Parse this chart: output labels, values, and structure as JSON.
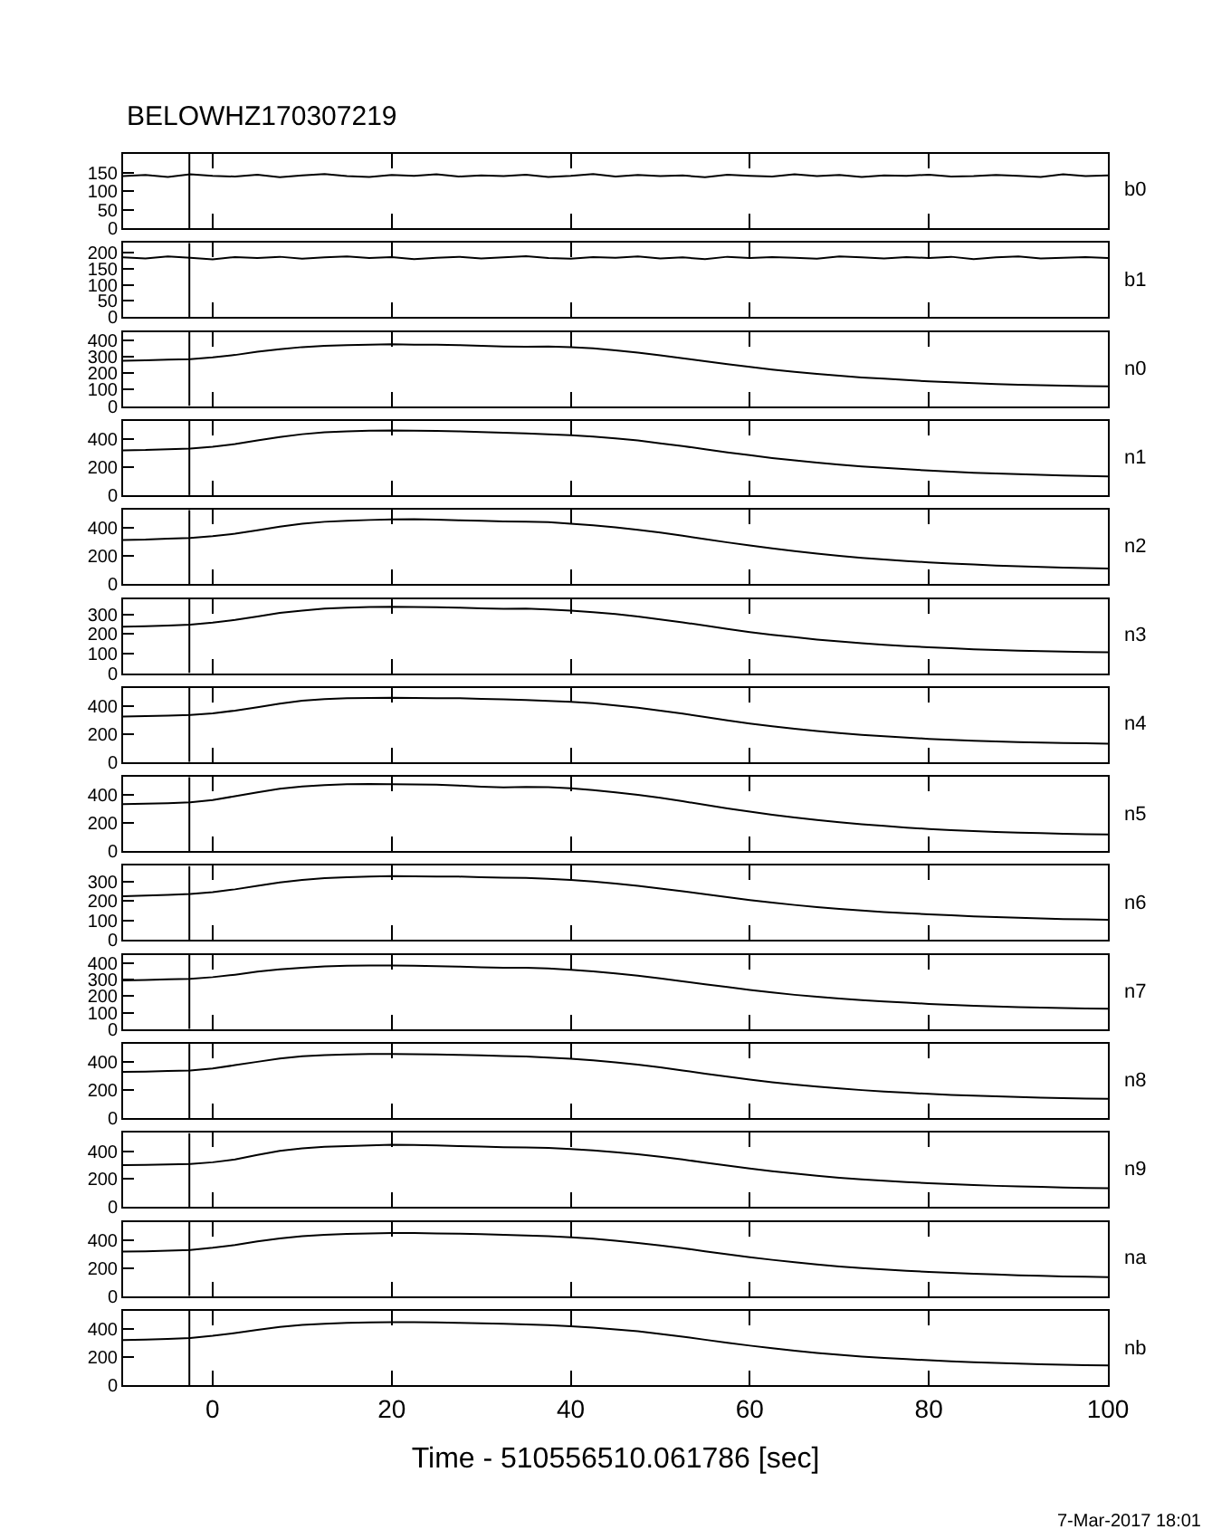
{
  "chart_data": [
    {
      "type": "line",
      "title": "BELOWHZ170307219",
      "x": [
        -10,
        -7.5,
        -5,
        -2.5,
        0,
        2.5,
        5,
        7.5,
        10,
        12.5,
        15,
        17.5,
        20,
        22.5,
        25,
        27.5,
        30,
        32.5,
        35,
        37.5,
        40,
        42.5,
        45,
        47.5,
        50,
        52.5,
        55,
        57.5,
        60,
        62.5,
        65,
        67.5,
        70,
        72.5,
        75,
        77.5,
        80,
        82.5,
        85,
        87.5,
        90,
        92.5,
        95,
        97.5,
        100
      ],
      "series": [
        {
          "name": "b0",
          "color": "#000000",
          "values": [
            140,
            143,
            138,
            145,
            141,
            139,
            144,
            137,
            142,
            146,
            140,
            138,
            143,
            141,
            145,
            139,
            142,
            140,
            144,
            138,
            141,
            146,
            139,
            143,
            140,
            142,
            137,
            144,
            141,
            139,
            145,
            140,
            143,
            138,
            142,
            141,
            144,
            139,
            140,
            143,
            141,
            138,
            145,
            140,
            142
          ]
        }
      ],
      "xlim": [
        -10,
        100
      ],
      "xticks": [
        0,
        20,
        40,
        60,
        80,
        100
      ],
      "ylim": [
        0,
        200
      ],
      "yticks": [
        0,
        50,
        100,
        150
      ],
      "ref_lines": [
        {
          "axis": "x",
          "value": -2.6,
          "color": "#000000"
        }
      ],
      "tick_labels": "y",
      "grid": false
    },
    {
      "type": "line",
      "x": [
        -10,
        -7.5,
        -5,
        -2.5,
        0,
        2.5,
        5,
        7.5,
        10,
        12.5,
        15,
        17.5,
        20,
        22.5,
        25,
        27.5,
        30,
        32.5,
        35,
        37.5,
        40,
        42.5,
        45,
        47.5,
        50,
        52.5,
        55,
        57.5,
        60,
        62.5,
        65,
        67.5,
        70,
        72.5,
        75,
        77.5,
        80,
        82.5,
        85,
        87.5,
        90,
        92.5,
        95,
        97.5,
        100
      ],
      "series": [
        {
          "name": "b1",
          "color": "#000000",
          "values": [
            185,
            182,
            188,
            184,
            179,
            186,
            183,
            187,
            181,
            185,
            188,
            183,
            186,
            180,
            184,
            187,
            182,
            185,
            189,
            183,
            181,
            186,
            184,
            188,
            182,
            185,
            180,
            187,
            183,
            186,
            184,
            181,
            188,
            185,
            182,
            186,
            183,
            187,
            180,
            185,
            188,
            182,
            184,
            186,
            183
          ]
        }
      ],
      "xlim": [
        -10,
        100
      ],
      "xticks": [
        0,
        20,
        40,
        60,
        80,
        100
      ],
      "ylim": [
        0,
        230
      ],
      "yticks": [
        0,
        50,
        100,
        150,
        200
      ],
      "ref_lines": [
        {
          "axis": "x",
          "value": -2.6,
          "color": "#000000"
        }
      ],
      "tick_labels": "y",
      "grid": false
    },
    {
      "type": "line",
      "x": [
        -10,
        -7.5,
        -5,
        -2.5,
        0,
        2.5,
        5,
        7.5,
        10,
        12.5,
        15,
        17.5,
        20,
        22.5,
        25,
        27.5,
        30,
        32.5,
        35,
        37.5,
        40,
        42.5,
        45,
        47.5,
        50,
        52.5,
        55,
        57.5,
        60,
        62.5,
        65,
        67.5,
        70,
        72.5,
        75,
        77.5,
        80,
        82.5,
        85,
        87.5,
        90,
        92.5,
        95,
        97.5,
        100
      ],
      "series": [
        {
          "name": "n0",
          "color": "#000000",
          "values": [
            275,
            278,
            282,
            285,
            295,
            310,
            330,
            345,
            358,
            365,
            370,
            372,
            375,
            373,
            372,
            370,
            366,
            362,
            360,
            362,
            358,
            350,
            338,
            325,
            308,
            290,
            272,
            255,
            238,
            222,
            208,
            195,
            184,
            174,
            166,
            158,
            150,
            145,
            139,
            134,
            130,
            127,
            124,
            121,
            120
          ]
        }
      ],
      "xlim": [
        -10,
        100
      ],
      "xticks": [
        0,
        20,
        40,
        60,
        80,
        100
      ],
      "ylim": [
        0,
        450
      ],
      "yticks": [
        0,
        100,
        200,
        300,
        400
      ],
      "ref_lines": [
        {
          "axis": "x",
          "value": -2.6,
          "color": "#000000"
        }
      ],
      "tick_labels": "y",
      "grid": false
    },
    {
      "type": "line",
      "x": [
        -10,
        -7.5,
        -5,
        -2.5,
        0,
        2.5,
        5,
        7.5,
        10,
        12.5,
        15,
        17.5,
        20,
        22.5,
        25,
        27.5,
        30,
        32.5,
        35,
        37.5,
        40,
        42.5,
        45,
        47.5,
        50,
        52.5,
        55,
        57.5,
        60,
        62.5,
        65,
        67.5,
        70,
        72.5,
        75,
        77.5,
        80,
        82.5,
        85,
        87.5,
        90,
        92.5,
        95,
        97.5,
        100
      ],
      "series": [
        {
          "name": "n1",
          "color": "#000000",
          "values": [
            320,
            322,
            328,
            332,
            345,
            365,
            390,
            415,
            435,
            448,
            455,
            460,
            462,
            460,
            458,
            455,
            450,
            445,
            440,
            435,
            428,
            418,
            405,
            390,
            370,
            350,
            328,
            305,
            285,
            265,
            248,
            232,
            218,
            205,
            195,
            185,
            175,
            168,
            160,
            155,
            150,
            145,
            140,
            137,
            133
          ]
        }
      ],
      "xlim": [
        -10,
        100
      ],
      "xticks": [
        0,
        20,
        40,
        60,
        80,
        100
      ],
      "ylim": [
        0,
        530
      ],
      "yticks": [
        0,
        200,
        400
      ],
      "ref_lines": [
        {
          "axis": "x",
          "value": -2.6,
          "color": "#000000"
        }
      ],
      "tick_labels": "y",
      "grid": false
    },
    {
      "type": "line",
      "x": [
        -10,
        -7.5,
        -5,
        -2.5,
        0,
        2.5,
        5,
        7.5,
        10,
        12.5,
        15,
        17.5,
        20,
        22.5,
        25,
        27.5,
        30,
        32.5,
        35,
        37.5,
        40,
        42.5,
        45,
        47.5,
        50,
        52.5,
        55,
        57.5,
        60,
        62.5,
        65,
        67.5,
        70,
        72.5,
        75,
        77.5,
        80,
        82.5,
        85,
        87.5,
        90,
        92.5,
        95,
        97.5,
        100
      ],
      "series": [
        {
          "name": "n2",
          "color": "#000000",
          "values": [
            315,
            318,
            325,
            330,
            342,
            360,
            385,
            410,
            432,
            445,
            452,
            458,
            462,
            463,
            460,
            456,
            452,
            448,
            445,
            442,
            432,
            420,
            405,
            388,
            368,
            345,
            322,
            298,
            276,
            255,
            236,
            218,
            202,
            188,
            176,
            165,
            155,
            147,
            140,
            133,
            127,
            122,
            118,
            114,
            111
          ]
        }
      ],
      "xlim": [
        -10,
        100
      ],
      "xticks": [
        0,
        20,
        40,
        60,
        80,
        100
      ],
      "ylim": [
        0,
        530
      ],
      "yticks": [
        0,
        200,
        400
      ],
      "ref_lines": [
        {
          "axis": "x",
          "value": -2.6,
          "color": "#000000"
        }
      ],
      "tick_labels": "y",
      "grid": false
    },
    {
      "type": "line",
      "x": [
        -10,
        -7.5,
        -5,
        -2.5,
        0,
        2.5,
        5,
        7.5,
        10,
        12.5,
        15,
        17.5,
        20,
        22.5,
        25,
        27.5,
        30,
        32.5,
        35,
        37.5,
        40,
        42.5,
        45,
        47.5,
        50,
        52.5,
        55,
        57.5,
        60,
        62.5,
        65,
        67.5,
        70,
        72.5,
        75,
        77.5,
        80,
        82.5,
        85,
        87.5,
        90,
        92.5,
        95,
        97.5,
        100
      ],
      "series": [
        {
          "name": "n3",
          "color": "#000000",
          "values": [
            238,
            240,
            244,
            248,
            258,
            272,
            290,
            308,
            320,
            330,
            335,
            338,
            340,
            338,
            337,
            335,
            332,
            329,
            330,
            326,
            320,
            312,
            302,
            290,
            275,
            260,
            243,
            226,
            210,
            196,
            184,
            172,
            162,
            153,
            145,
            138,
            132,
            127,
            122,
            118,
            115,
            112,
            110,
            108,
            107
          ]
        }
      ],
      "xlim": [
        -10,
        100
      ],
      "xticks": [
        0,
        20,
        40,
        60,
        80,
        100
      ],
      "ylim": [
        0,
        380
      ],
      "yticks": [
        0,
        100,
        200,
        300
      ],
      "ref_lines": [
        {
          "axis": "x",
          "value": -2.6,
          "color": "#000000"
        }
      ],
      "tick_labels": "y",
      "grid": false
    },
    {
      "type": "line",
      "x": [
        -10,
        -7.5,
        -5,
        -2.5,
        0,
        2.5,
        5,
        7.5,
        10,
        12.5,
        15,
        17.5,
        20,
        22.5,
        25,
        27.5,
        30,
        32.5,
        35,
        37.5,
        40,
        42.5,
        45,
        47.5,
        50,
        52.5,
        55,
        57.5,
        60,
        62.5,
        65,
        67.5,
        70,
        72.5,
        75,
        77.5,
        80,
        82.5,
        85,
        87.5,
        90,
        92.5,
        95,
        97.5,
        100
      ],
      "series": [
        {
          "name": "n4",
          "color": "#000000",
          "values": [
            325,
            328,
            332,
            336,
            348,
            368,
            392,
            418,
            438,
            450,
            456,
            458,
            460,
            458,
            457,
            456,
            452,
            448,
            443,
            437,
            430,
            420,
            405,
            388,
            368,
            346,
            322,
            298,
            276,
            256,
            238,
            222,
            208,
            195,
            184,
            175,
            166,
            159,
            153,
            147,
            142,
            139,
            136,
            134,
            132
          ]
        }
      ],
      "xlim": [
        -10,
        100
      ],
      "xticks": [
        0,
        20,
        40,
        60,
        80,
        100
      ],
      "ylim": [
        0,
        530
      ],
      "yticks": [
        0,
        200,
        400
      ],
      "ref_lines": [
        {
          "axis": "x",
          "value": -2.6,
          "color": "#000000"
        }
      ],
      "tick_labels": "y",
      "grid": false
    },
    {
      "type": "line",
      "x": [
        -10,
        -7.5,
        -5,
        -2.5,
        0,
        2.5,
        5,
        7.5,
        10,
        12.5,
        15,
        17.5,
        20,
        22.5,
        25,
        27.5,
        30,
        32.5,
        35,
        37.5,
        40,
        42.5,
        45,
        47.5,
        50,
        52.5,
        55,
        57.5,
        60,
        62.5,
        65,
        67.5,
        70,
        72.5,
        75,
        77.5,
        80,
        82.5,
        85,
        87.5,
        90,
        92.5,
        95,
        97.5,
        100
      ],
      "series": [
        {
          "name": "n5",
          "color": "#000000",
          "values": [
            335,
            338,
            342,
            348,
            365,
            392,
            420,
            445,
            462,
            472,
            478,
            480,
            478,
            476,
            474,
            468,
            460,
            455,
            458,
            456,
            448,
            436,
            420,
            402,
            380,
            356,
            330,
            305,
            282,
            260,
            240,
            222,
            206,
            192,
            180,
            168,
            158,
            150,
            143,
            137,
            132,
            128,
            124,
            121,
            119
          ]
        }
      ],
      "xlim": [
        -10,
        100
      ],
      "xticks": [
        0,
        20,
        40,
        60,
        80,
        100
      ],
      "ylim": [
        0,
        530
      ],
      "yticks": [
        0,
        200,
        400
      ],
      "ref_lines": [
        {
          "axis": "x",
          "value": -2.6,
          "color": "#000000"
        }
      ],
      "tick_labels": "y",
      "grid": false
    },
    {
      "type": "line",
      "x": [
        -10,
        -7.5,
        -5,
        -2.5,
        0,
        2.5,
        5,
        7.5,
        10,
        12.5,
        15,
        17.5,
        20,
        22.5,
        25,
        27.5,
        30,
        32.5,
        35,
        37.5,
        40,
        42.5,
        45,
        47.5,
        50,
        52.5,
        55,
        57.5,
        60,
        62.5,
        65,
        67.5,
        70,
        72.5,
        75,
        77.5,
        80,
        82.5,
        85,
        87.5,
        90,
        92.5,
        95,
        97.5,
        100
      ],
      "series": [
        {
          "name": "n6",
          "color": "#000000",
          "values": [
            225,
            228,
            232,
            236,
            245,
            260,
            278,
            295,
            308,
            317,
            322,
            326,
            328,
            327,
            326,
            325,
            322,
            320,
            318,
            314,
            308,
            300,
            290,
            278,
            264,
            250,
            235,
            220,
            205,
            192,
            180,
            169,
            160,
            151,
            144,
            138,
            132,
            127,
            122,
            118,
            114,
            111,
            108,
            106,
            104
          ]
        }
      ],
      "xlim": [
        -10,
        100
      ],
      "xticks": [
        0,
        20,
        40,
        60,
        80,
        100
      ],
      "ylim": [
        0,
        380
      ],
      "yticks": [
        0,
        100,
        200,
        300
      ],
      "ref_lines": [
        {
          "axis": "x",
          "value": -2.6,
          "color": "#000000"
        }
      ],
      "tick_labels": "y",
      "grid": false
    },
    {
      "type": "line",
      "x": [
        -10,
        -7.5,
        -5,
        -2.5,
        0,
        2.5,
        5,
        7.5,
        10,
        12.5,
        15,
        17.5,
        20,
        22.5,
        25,
        27.5,
        30,
        32.5,
        35,
        37.5,
        40,
        42.5,
        45,
        47.5,
        50,
        52.5,
        55,
        57.5,
        60,
        62.5,
        65,
        67.5,
        70,
        72.5,
        75,
        77.5,
        80,
        82.5,
        85,
        87.5,
        90,
        92.5,
        95,
        97.5,
        100
      ],
      "series": [
        {
          "name": "n7",
          "color": "#000000",
          "values": [
            295,
            298,
            302,
            305,
            315,
            330,
            348,
            362,
            372,
            380,
            384,
            386,
            385,
            384,
            382,
            379,
            375,
            372,
            372,
            368,
            360,
            350,
            338,
            324,
            308,
            290,
            272,
            255,
            238,
            222,
            208,
            196,
            185,
            176,
            168,
            160,
            153,
            147,
            142,
            137,
            133,
            130,
            127,
            125,
            123
          ]
        }
      ],
      "xlim": [
        -10,
        100
      ],
      "xticks": [
        0,
        20,
        40,
        60,
        80,
        100
      ],
      "ylim": [
        0,
        450
      ],
      "yticks": [
        0,
        100,
        200,
        300,
        400
      ],
      "ref_lines": [
        {
          "axis": "x",
          "value": -2.6,
          "color": "#000000"
        }
      ],
      "tick_labels": "y",
      "grid": false
    },
    {
      "type": "line",
      "x": [
        -10,
        -7.5,
        -5,
        -2.5,
        0,
        2.5,
        5,
        7.5,
        10,
        12.5,
        15,
        17.5,
        20,
        22.5,
        25,
        27.5,
        30,
        32.5,
        35,
        37.5,
        40,
        42.5,
        45,
        47.5,
        50,
        52.5,
        55,
        57.5,
        60,
        62.5,
        65,
        67.5,
        70,
        72.5,
        75,
        77.5,
        80,
        82.5,
        85,
        87.5,
        90,
        92.5,
        95,
        97.5,
        100
      ],
      "series": [
        {
          "name": "n8",
          "color": "#000000",
          "values": [
            330,
            332,
            336,
            340,
            355,
            378,
            402,
            425,
            442,
            450,
            455,
            458,
            458,
            456,
            455,
            452,
            448,
            444,
            440,
            432,
            424,
            412,
            398,
            382,
            362,
            340,
            318,
            296,
            275,
            256,
            240,
            225,
            212,
            200,
            190,
            181,
            173,
            166,
            160,
            155,
            150,
            146,
            143,
            140,
            138
          ]
        }
      ],
      "xlim": [
        -10,
        100
      ],
      "xticks": [
        0,
        20,
        40,
        60,
        80,
        100
      ],
      "ylim": [
        0,
        530
      ],
      "yticks": [
        0,
        200,
        400
      ],
      "ref_lines": [
        {
          "axis": "x",
          "value": -2.6,
          "color": "#000000"
        }
      ],
      "tick_labels": "y",
      "grid": false
    },
    {
      "type": "line",
      "x": [
        -10,
        -7.5,
        -5,
        -2.5,
        0,
        2.5,
        5,
        7.5,
        10,
        12.5,
        15,
        17.5,
        20,
        22.5,
        25,
        27.5,
        30,
        32.5,
        35,
        37.5,
        40,
        42.5,
        45,
        47.5,
        50,
        52.5,
        55,
        57.5,
        60,
        62.5,
        65,
        67.5,
        70,
        72.5,
        75,
        77.5,
        80,
        82.5,
        85,
        87.5,
        90,
        92.5,
        95,
        97.5,
        100
      ],
      "series": [
        {
          "name": "n9",
          "color": "#000000",
          "values": [
            300,
            302,
            305,
            308,
            320,
            340,
            372,
            402,
            420,
            430,
            436,
            440,
            445,
            444,
            440,
            436,
            432,
            428,
            426,
            422,
            415,
            405,
            392,
            378,
            360,
            340,
            318,
            296,
            276,
            257,
            240,
            224,
            210,
            198,
            188,
            179,
            171,
            164,
            158,
            152,
            148,
            144,
            140,
            137,
            135
          ]
        }
      ],
      "xlim": [
        -10,
        100
      ],
      "xticks": [
        0,
        20,
        40,
        60,
        80,
        100
      ],
      "ylim": [
        0,
        530
      ],
      "yticks": [
        0,
        200,
        400
      ],
      "ref_lines": [
        {
          "axis": "x",
          "value": -2.6,
          "color": "#000000"
        }
      ],
      "tick_labels": "y",
      "grid": false
    },
    {
      "type": "line",
      "x": [
        -10,
        -7.5,
        -5,
        -2.5,
        0,
        2.5,
        5,
        7.5,
        10,
        12.5,
        15,
        17.5,
        20,
        22.5,
        25,
        27.5,
        30,
        32.5,
        35,
        37.5,
        40,
        42.5,
        45,
        47.5,
        50,
        52.5,
        55,
        57.5,
        60,
        62.5,
        65,
        67.5,
        70,
        72.5,
        75,
        77.5,
        80,
        82.5,
        85,
        87.5,
        90,
        92.5,
        95,
        97.5,
        100
      ],
      "series": [
        {
          "name": "na",
          "color": "#000000",
          "values": [
            318,
            320,
            325,
            330,
            345,
            365,
            390,
            412,
            428,
            438,
            444,
            448,
            450,
            450,
            448,
            446,
            442,
            437,
            432,
            428,
            420,
            410,
            396,
            380,
            362,
            342,
            320,
            298,
            278,
            259,
            242,
            226,
            212,
            200,
            190,
            181,
            173,
            166,
            160,
            154,
            149,
            145,
            141,
            138,
            136
          ]
        }
      ],
      "xlim": [
        -10,
        100
      ],
      "xticks": [
        0,
        20,
        40,
        60,
        80,
        100
      ],
      "ylim": [
        0,
        530
      ],
      "yticks": [
        0,
        200,
        400
      ],
      "ref_lines": [
        {
          "axis": "x",
          "value": -2.6,
          "color": "#000000"
        }
      ],
      "tick_labels": "y",
      "grid": false
    },
    {
      "type": "line",
      "xlabel": "Time - 510556510.061786 [sec]",
      "annotations": [
        "7-Mar-2017 18:01"
      ],
      "x": [
        -10,
        -7.5,
        -5,
        -2.5,
        0,
        2.5,
        5,
        7.5,
        10,
        12.5,
        15,
        17.5,
        20,
        22.5,
        25,
        27.5,
        30,
        32.5,
        35,
        37.5,
        40,
        42.5,
        45,
        47.5,
        50,
        52.5,
        55,
        57.5,
        60,
        62.5,
        65,
        67.5,
        70,
        72.5,
        75,
        77.5,
        80,
        82.5,
        85,
        87.5,
        90,
        92.5,
        95,
        97.5,
        100
      ],
      "series": [
        {
          "name": "nb",
          "color": "#000000",
          "values": [
            322,
            325,
            330,
            336,
            352,
            372,
            395,
            415,
            430,
            438,
            444,
            448,
            450,
            449,
            448,
            445,
            442,
            438,
            433,
            428,
            420,
            410,
            398,
            384,
            366,
            346,
            324,
            302,
            282,
            263,
            246,
            230,
            216,
            204,
            194,
            185,
            177,
            170,
            164,
            158,
            153,
            149,
            145,
            142,
            140
          ]
        }
      ],
      "xlim": [
        -10,
        100
      ],
      "xticks": [
        0,
        20,
        40,
        60,
        80,
        100
      ],
      "ylim": [
        0,
        530
      ],
      "yticks": [
        0,
        200,
        400
      ],
      "ref_lines": [
        {
          "axis": "x",
          "value": -2.6,
          "color": "#000000"
        }
      ],
      "grid": false
    }
  ]
}
